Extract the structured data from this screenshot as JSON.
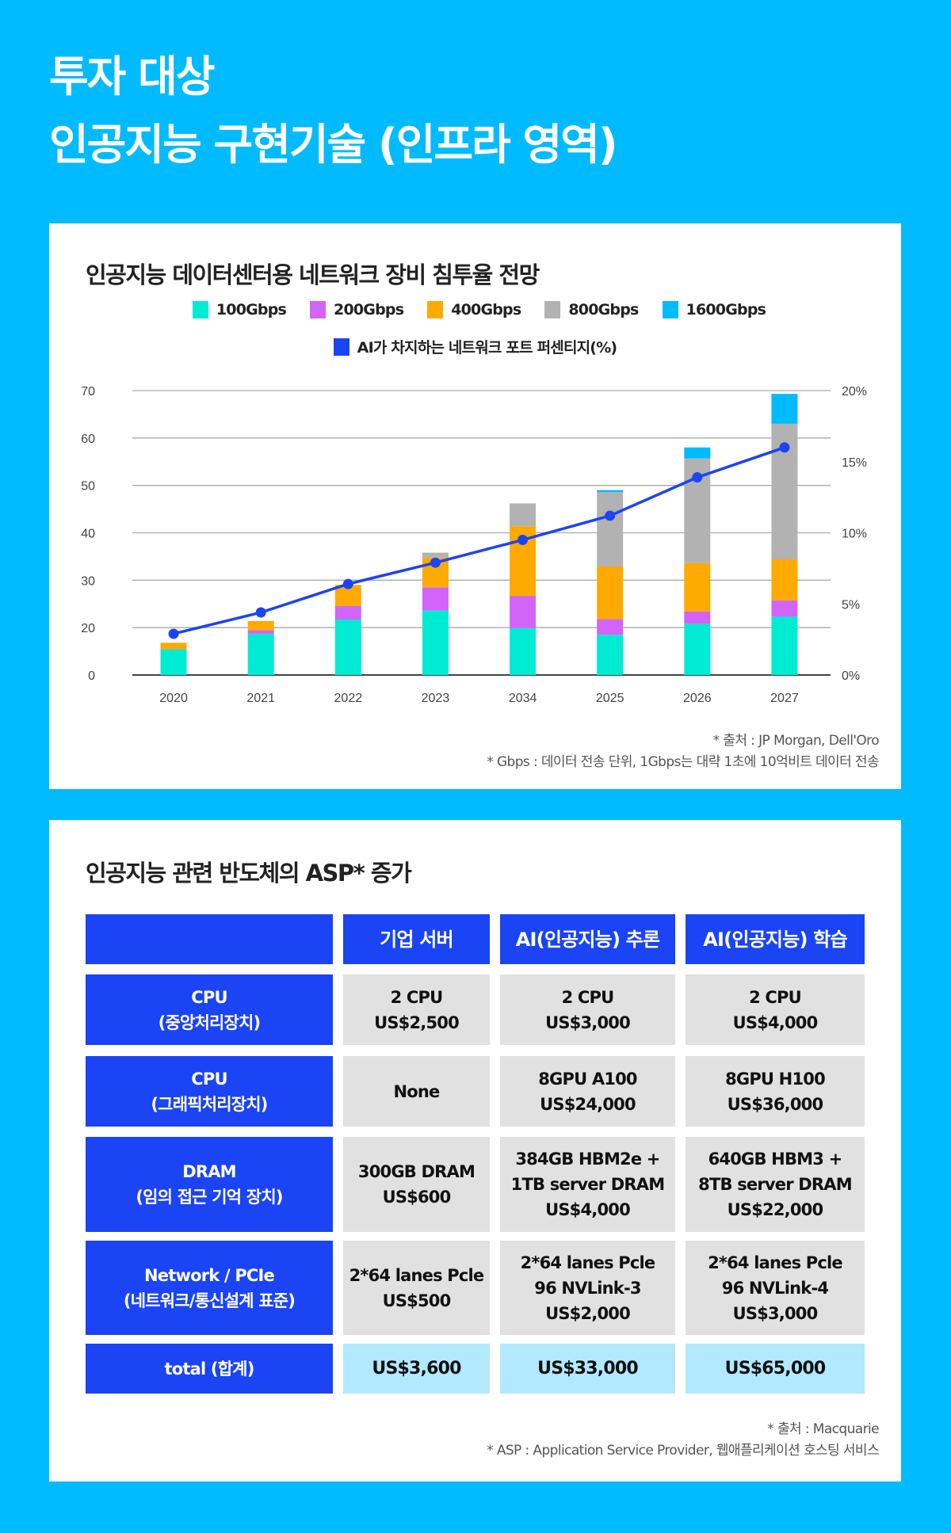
{
  "page": {
    "title_line1": "투자 대상",
    "title_line2": "인공지능 구현기술 (인프라 영역)",
    "background_color": "#00BBFF"
  },
  "chart_section": {
    "title": "인공지능 데이터센터용 네트워크 장비 침투율 전망",
    "footnotes": [
      "* 출처 : JP Morgan, Dell'Oro",
      "* Gbps : 데이터 전송 단위, 1Gbps는 대략 1초에 10억비트 데이터 전송"
    ]
  },
  "chart_data": {
    "type": "bar",
    "subtype": "stacked bar with line on secondary axis",
    "title": "인공지능 데이터센터용 네트워크 장비 침투율 전망",
    "categories": [
      "2020",
      "2021",
      "2022",
      "2023",
      "2034",
      "2025",
      "2026",
      "2027"
    ],
    "series": [
      {
        "name": "100Gbps",
        "type": "bar",
        "axis": "left",
        "color": "#00EBD3",
        "values": [
          10.9,
          17.4,
          21.7,
          23.6,
          19.8,
          17.0,
          20.8,
          22.3
        ]
      },
      {
        "name": "200Gbps",
        "type": "bar",
        "axis": "left",
        "color": "#D264FA",
        "values": [
          0,
          1.5,
          2.9,
          4.9,
          6.9,
          4.8,
          2.6,
          3.4
        ]
      },
      {
        "name": "400Gbps",
        "type": "bar",
        "axis": "left",
        "color": "#FFAA00",
        "values": [
          2.7,
          2.5,
          4.4,
          6.3,
          14.7,
          11.1,
          10.2,
          8.7
        ]
      },
      {
        "name": "800Gbps",
        "type": "bar",
        "axis": "left",
        "color": "#B2B2B2",
        "values": [
          0,
          0,
          0,
          1.0,
          4.8,
          15.7,
          22.1,
          28.6
        ]
      },
      {
        "name": "1600Gbps",
        "type": "bar",
        "axis": "left",
        "color": "#00BBFF",
        "values": [
          0,
          0,
          0,
          0,
          0,
          0.4,
          2.3,
          6.3
        ]
      },
      {
        "name": "AI가 차지하는 네트워크 포트 퍼센티지(%)",
        "type": "line",
        "axis": "right",
        "color": "#1B44F5",
        "values": [
          2.9,
          4.4,
          6.4,
          7.9,
          9.5,
          11.2,
          13.9,
          16.0
        ]
      }
    ],
    "left_axis": {
      "tick_labels": [
        "0",
        "20",
        "30",
        "40",
        "50",
        "60",
        "70"
      ],
      "ticks": [
        0,
        20,
        30,
        40,
        50,
        60,
        70
      ]
    },
    "right_axis": {
      "tick_labels": [
        "0%",
        "5%",
        "10%",
        "15%",
        "20%"
      ],
      "ticks": [
        0,
        5,
        10,
        15,
        20
      ],
      "ylim": [
        0,
        20
      ]
    },
    "xlabel": "",
    "ylabel": "",
    "grid": true,
    "legend_position": "top-center"
  },
  "table_section": {
    "title": "인공지능 관련 반도체의 ASP* 증가",
    "columns": [
      "",
      "기업 서버",
      "AI(인공지능) 추론",
      "AI(인공지능) 학습"
    ],
    "rows": [
      {
        "label": "CPU\n(중앙처리장치)",
        "cells": [
          "2 CPU\nUS$2,500",
          "2 CPU\nUS$3,000",
          "2 CPU\nUS$4,000"
        ]
      },
      {
        "label": "CPU\n(그래픽처리장치)",
        "cells": [
          "None",
          "8GPU A100\nUS$24,000",
          "8GPU H100\nUS$36,000"
        ]
      },
      {
        "label": "DRAM\n(임의 접근 기억 장치)",
        "cells": [
          "300GB DRAM\nUS$600",
          "384GB HBM2e +\n1TB server DRAM\nUS$4,000",
          "640GB HBM3 +\n8TB server DRAM\nUS$22,000"
        ]
      },
      {
        "label": "Network / PCIe\n(네트워크/통신설계  표준)",
        "cells": [
          "2*64 lanes Pcle\nUS$500",
          "2*64 lanes Pcle\n96 NVLink-3\nUS$2,000",
          "2*64 lanes Pcle\n96 NVLink-4\nUS$3,000"
        ]
      }
    ],
    "total": {
      "label": "total (합계)",
      "cells": [
        "US$3,600",
        "US$33,000",
        "US$65,000"
      ]
    },
    "footnotes": [
      "* 출처 : Macquarie",
      "* ASP : Application Service Provider, 웹애플리케이션 호스팅 서비스"
    ]
  }
}
